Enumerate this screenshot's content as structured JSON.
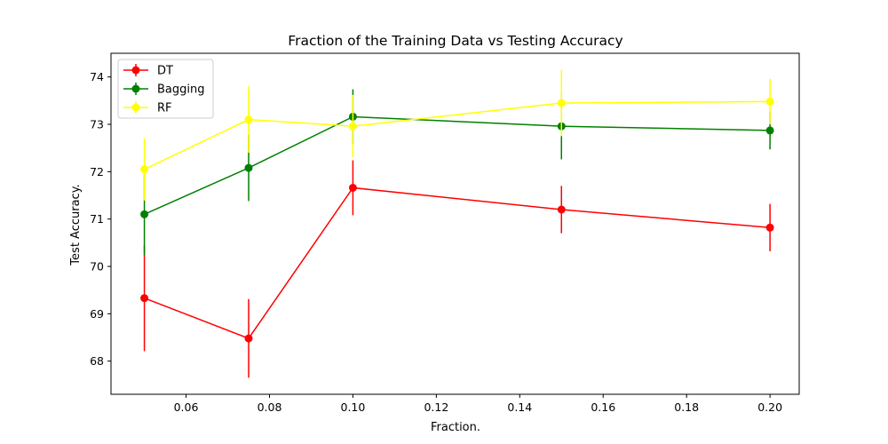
{
  "chart_data": {
    "type": "line",
    "title": "Fraction of the Training Data vs Testing Accuracy",
    "xlabel": "Fraction.",
    "ylabel": "Test Accuracy.",
    "x": [
      0.05,
      0.075,
      0.1,
      0.15,
      0.2
    ],
    "xlim": [
      0.042,
      0.207
    ],
    "ylim": [
      67.3,
      74.5
    ],
    "xticks": [
      "0.06",
      "0.08",
      "0.10",
      "0.12",
      "0.14",
      "0.16",
      "0.18",
      "0.20"
    ],
    "yticks": [
      "68",
      "69",
      "70",
      "71",
      "72",
      "73",
      "74"
    ],
    "xtick_values": [
      0.06,
      0.08,
      0.1,
      0.12,
      0.14,
      0.16,
      0.18,
      0.2
    ],
    "ytick_values": [
      68,
      69,
      70,
      71,
      72,
      73,
      74
    ],
    "grid": false,
    "legend_position": "top-left",
    "series": [
      {
        "name": "DT",
        "color": "#ff0000",
        "values": [
          69.33,
          68.48,
          71.66,
          71.2,
          70.82
        ],
        "errors": [
          1.12,
          0.83,
          0.58,
          0.5,
          0.5
        ]
      },
      {
        "name": "Bagging",
        "color": "#008000",
        "values": [
          71.1,
          72.08,
          73.16,
          72.96,
          72.87
        ],
        "errors": [
          0.86,
          0.7,
          0.58,
          0.7,
          0.4
        ]
      },
      {
        "name": "RF",
        "color": "#ffff00",
        "values": [
          72.05,
          73.1,
          72.96,
          73.45,
          73.48
        ],
        "errors": [
          0.66,
          0.7,
          0.66,
          0.7,
          0.48
        ]
      }
    ]
  }
}
